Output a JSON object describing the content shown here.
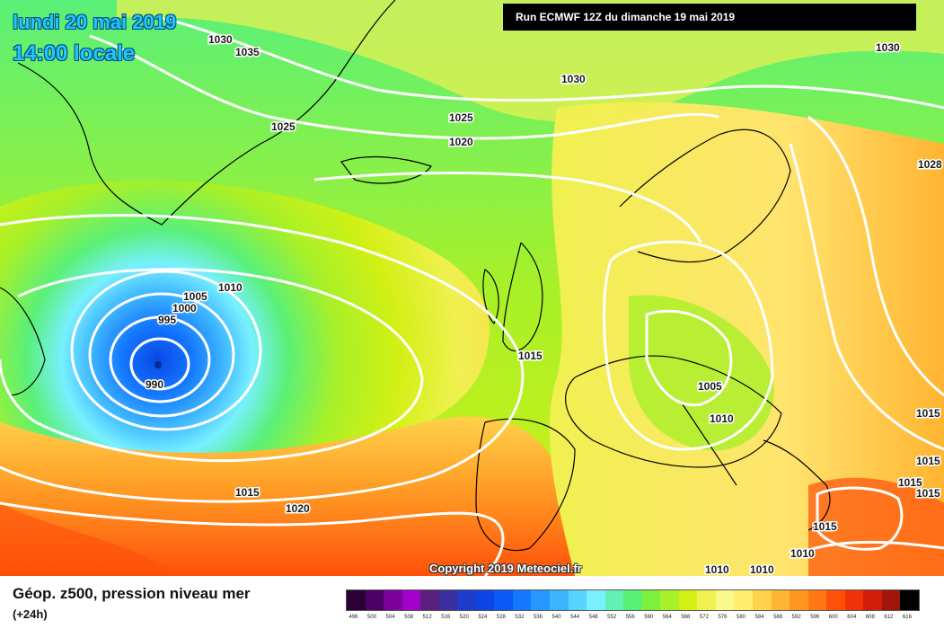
{
  "header": {
    "date_line": "lundi 20 mai 2019",
    "local_time": "14:00 locale",
    "run_banner": "Run ECMWF 12Z du dimanche 19 mai 2019"
  },
  "copyright": "Copyright 2019 Meteociel.fr",
  "footer": {
    "parameter": "Géop. z500, pression niveau mer",
    "forecast_offset": "(+24h)"
  },
  "legend": {
    "unit_labels": [
      "496",
      "500",
      "504",
      "508",
      "512",
      "516",
      "520",
      "524",
      "528",
      "532",
      "536",
      "540",
      "544",
      "548",
      "552",
      "556",
      "560",
      "564",
      "568",
      "572",
      "576",
      "580",
      "584",
      "588",
      "592",
      "596",
      "600",
      "604",
      "608",
      "612",
      "616"
    ],
    "colors": [
      "#2b0035",
      "#4d0066",
      "#7a0099",
      "#a300cc",
      "#5a1f7f",
      "#3c2fa0",
      "#1e3cc8",
      "#0e46e6",
      "#0a5af5",
      "#1478ff",
      "#2896ff",
      "#3cb4ff",
      "#5ad2ff",
      "#78f0ff",
      "#64f0b4",
      "#5af078",
      "#7cf03c",
      "#a8f028",
      "#d2f014",
      "#f0f050",
      "#fafa8c",
      "#ffee6e",
      "#ffd24a",
      "#ffb432",
      "#ff9622",
      "#ff7814",
      "#ff500a",
      "#f03208",
      "#d21e08",
      "#a0140a",
      "#000000"
    ]
  },
  "isobars": [
    {
      "value": "990"
    },
    {
      "value": "995"
    },
    {
      "value": "1000"
    },
    {
      "value": "1005"
    },
    {
      "value": "1010"
    },
    {
      "value": "1015"
    },
    {
      "value": "1020"
    },
    {
      "value": "1025"
    },
    {
      "value": "1030"
    },
    {
      "value": "1035"
    }
  ],
  "pressure_labels": [
    "1030",
    "1035",
    "1025",
    "1030",
    "1025",
    "1020",
    "1030",
    "1028",
    "1010",
    "1005",
    "1000",
    "995",
    "990",
    "1015",
    "1005",
    "1010",
    "1015",
    "1015",
    "1015",
    "1020",
    "1015",
    "1010",
    "1015",
    "1015",
    "1010",
    "1010"
  ]
}
